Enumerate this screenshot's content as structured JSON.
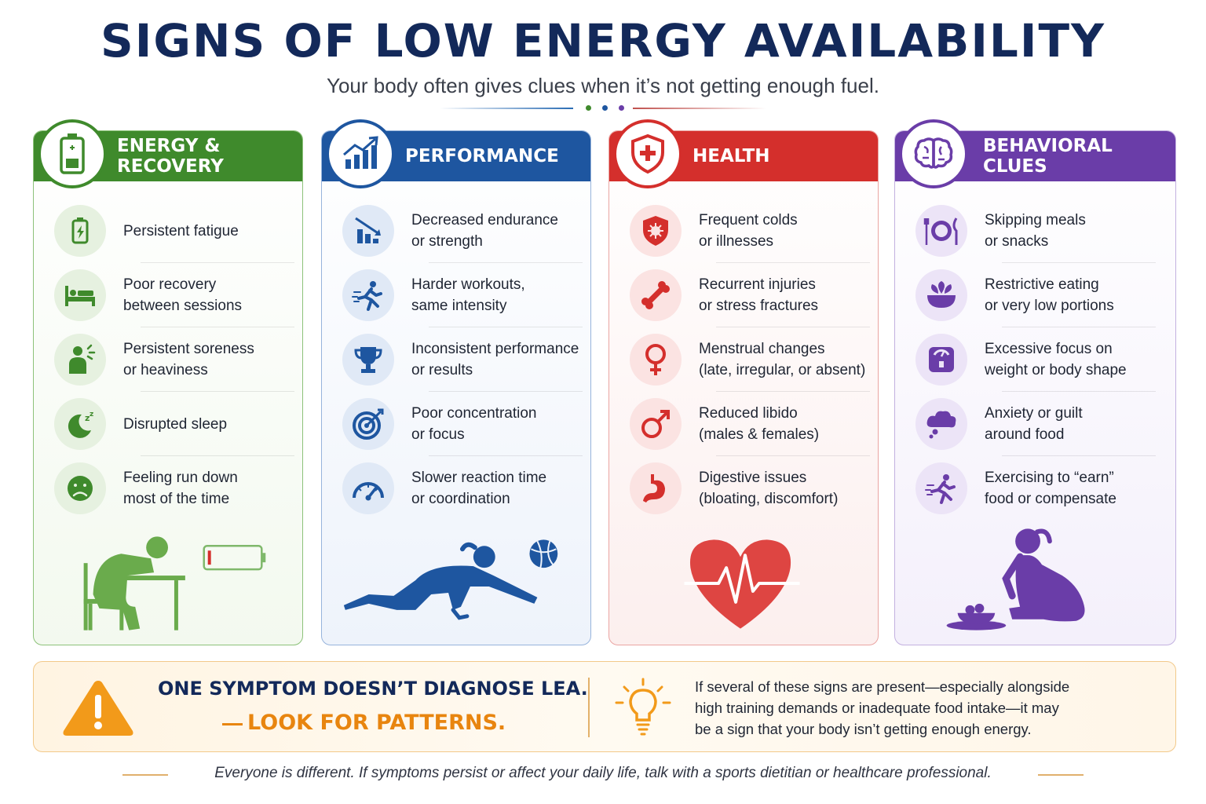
{
  "header": {
    "title": "SIGNS OF LOW ENERGY AVAILABILITY",
    "subtitle": "Your body often gives clues when it’s not getting enough fuel."
  },
  "colors": {
    "green": "#3f8a2c",
    "blue": "#1e56a0",
    "red": "#d42f2c",
    "purple": "#6a3da8",
    "orange": "#e8850f",
    "navy": "#13295a"
  },
  "categories": [
    {
      "title": "ENERGY & RECOVERY",
      "icon": "battery-icon",
      "items": [
        {
          "icon": "low-battery-icon",
          "line1": "Persistent fatigue",
          "line2": ""
        },
        {
          "icon": "bed-icon",
          "line1": "Poor recovery",
          "line2": "between sessions"
        },
        {
          "icon": "sore-person-icon",
          "line1": "Persistent soreness",
          "line2": "or heaviness"
        },
        {
          "icon": "moon-zzz-icon",
          "line1": "Disrupted sleep",
          "line2": ""
        },
        {
          "icon": "sad-face-icon",
          "line1": "Feeling run down",
          "line2": "most of the time"
        }
      ]
    },
    {
      "title": "PERFORMANCE",
      "icon": "rising-chart-icon",
      "items": [
        {
          "icon": "declining-chart-icon",
          "line1": "Decreased endurance",
          "line2": "or strength"
        },
        {
          "icon": "runner-icon",
          "line1": "Harder workouts,",
          "line2": "same intensity"
        },
        {
          "icon": "trophy-icon",
          "line1": "Inconsistent performance",
          "line2": "or results"
        },
        {
          "icon": "target-icon",
          "line1": "Poor concentration",
          "line2": "or focus"
        },
        {
          "icon": "speedometer-icon",
          "line1": "Slower reaction time",
          "line2": "or coordination"
        }
      ]
    },
    {
      "title": "HEALTH",
      "icon": "shield-cross-icon",
      "items": [
        {
          "icon": "virus-shield-icon",
          "line1": "Frequent colds",
          "line2": "or illnesses"
        },
        {
          "icon": "bone-icon",
          "line1": "Recurrent injuries",
          "line2": "or stress fractures"
        },
        {
          "icon": "female-symbol-icon",
          "line1": "Menstrual changes",
          "line2": "(late, irregular, or absent)"
        },
        {
          "icon": "male-symbol-icon",
          "line1": "Reduced libido",
          "line2": "(males & females)"
        },
        {
          "icon": "stomach-icon",
          "line1": "Digestive issues",
          "line2": "(bloating, discomfort)"
        }
      ]
    },
    {
      "title": "BEHAVIORAL CLUES",
      "icon": "brain-icon",
      "items": [
        {
          "icon": "plate-cutlery-icon",
          "line1": "Skipping meals",
          "line2": "or snacks"
        },
        {
          "icon": "salad-bowl-icon",
          "line1": "Restrictive eating",
          "line2": "or very low portions"
        },
        {
          "icon": "scale-icon",
          "line1": "Excessive focus on",
          "line2": "weight or body shape"
        },
        {
          "icon": "thought-cloud-icon",
          "line1": "Anxiety or guilt",
          "line2": "around food"
        },
        {
          "icon": "runner-icon",
          "line1": "Exercising to “earn”",
          "line2": "food or compensate"
        }
      ]
    }
  ],
  "callout": {
    "headline": "ONE SYMPTOM DOESN’T DIAGNOSE LEA.",
    "emphasis": "LOOK FOR PATTERNS.",
    "note_lines": [
      "If several of these signs are present—especially alongside",
      "high training demands or inadequate food intake—it may",
      "be a sign that your body isn’t getting enough energy."
    ]
  },
  "footer": "Everyone is different. If symptoms persist or affect your daily life, talk with a sports dietitian or healthcare professional."
}
